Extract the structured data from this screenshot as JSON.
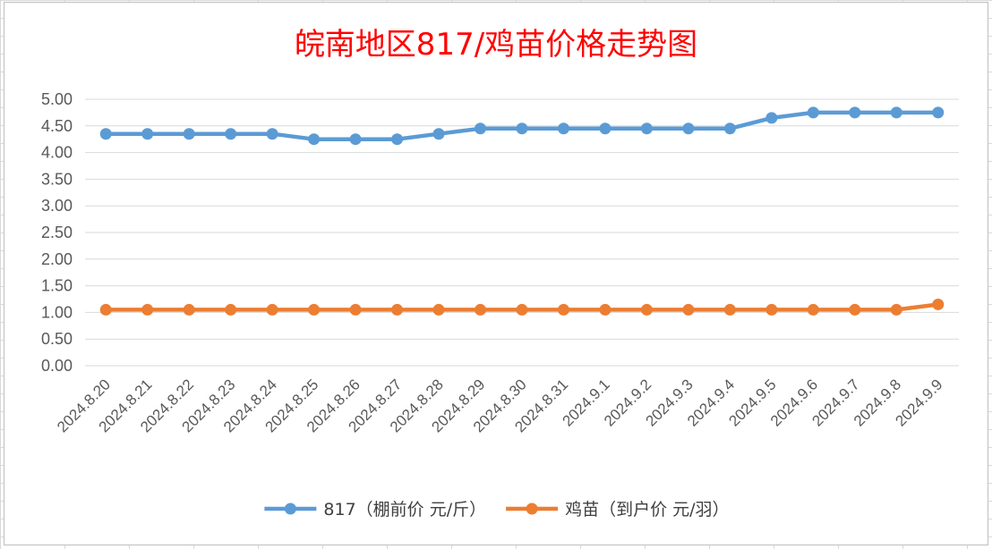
{
  "chart_data": {
    "type": "line",
    "title": "皖南地区817/鸡苗价格走势图",
    "categories": [
      "2024.8.20",
      "2024.8.21",
      "2024.8.22",
      "2024.8.23",
      "2024.8.24",
      "2024.8.25",
      "2024.8.26",
      "2024.8.27",
      "2024.8.28",
      "2024.8.29",
      "2024.8.30",
      "2024.8.31",
      "2024.9.1",
      "2024.9.2",
      "2024.9.3",
      "2024.9.4",
      "2024.9.5",
      "2024.9.6",
      "2024.9.7",
      "2024.9.8",
      "2024.9.9"
    ],
    "series": [
      {
        "name": "817（棚前价 元/斤）",
        "color": "#5b9bd5",
        "values": [
          4.35,
          4.35,
          4.35,
          4.35,
          4.35,
          4.25,
          4.25,
          4.25,
          4.35,
          4.45,
          4.45,
          4.45,
          4.45,
          4.45,
          4.45,
          4.45,
          4.65,
          4.75,
          4.75,
          4.75,
          4.75
        ]
      },
      {
        "name": "鸡苗（到户价 元/羽）",
        "color": "#ed7d31",
        "values": [
          1.05,
          1.05,
          1.05,
          1.05,
          1.05,
          1.05,
          1.05,
          1.05,
          1.05,
          1.05,
          1.05,
          1.05,
          1.05,
          1.05,
          1.05,
          1.05,
          1.05,
          1.05,
          1.05,
          1.05,
          1.15
        ]
      }
    ],
    "ylim": [
      0,
      5
    ],
    "yticks": [
      "0.00",
      "0.50",
      "1.00",
      "1.50",
      "2.00",
      "2.50",
      "3.00",
      "3.50",
      "4.00",
      "4.50",
      "5.00"
    ],
    "grid": true,
    "legend": "bottom"
  }
}
